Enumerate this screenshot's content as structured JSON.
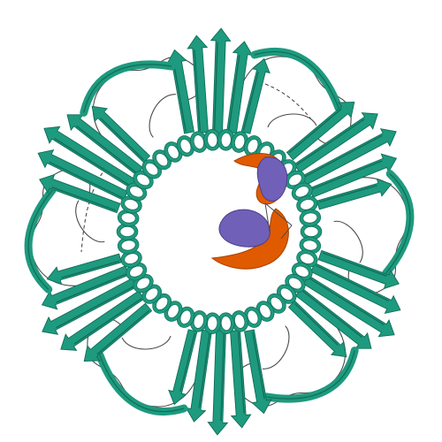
{
  "image": {
    "subject": "protein-ribbon-structure",
    "symmetry": 6,
    "colors": {
      "background": "#ffffff",
      "protein": "#1e9a7e",
      "protein_dark": "#0f6e58",
      "loop": "#4a4a4a",
      "dna_strand": "#e05a00",
      "dna_strand_dark": "#a84000",
      "bound_partner": "#7060b8",
      "bound_partner_dark": "#4a3e8c"
    }
  }
}
